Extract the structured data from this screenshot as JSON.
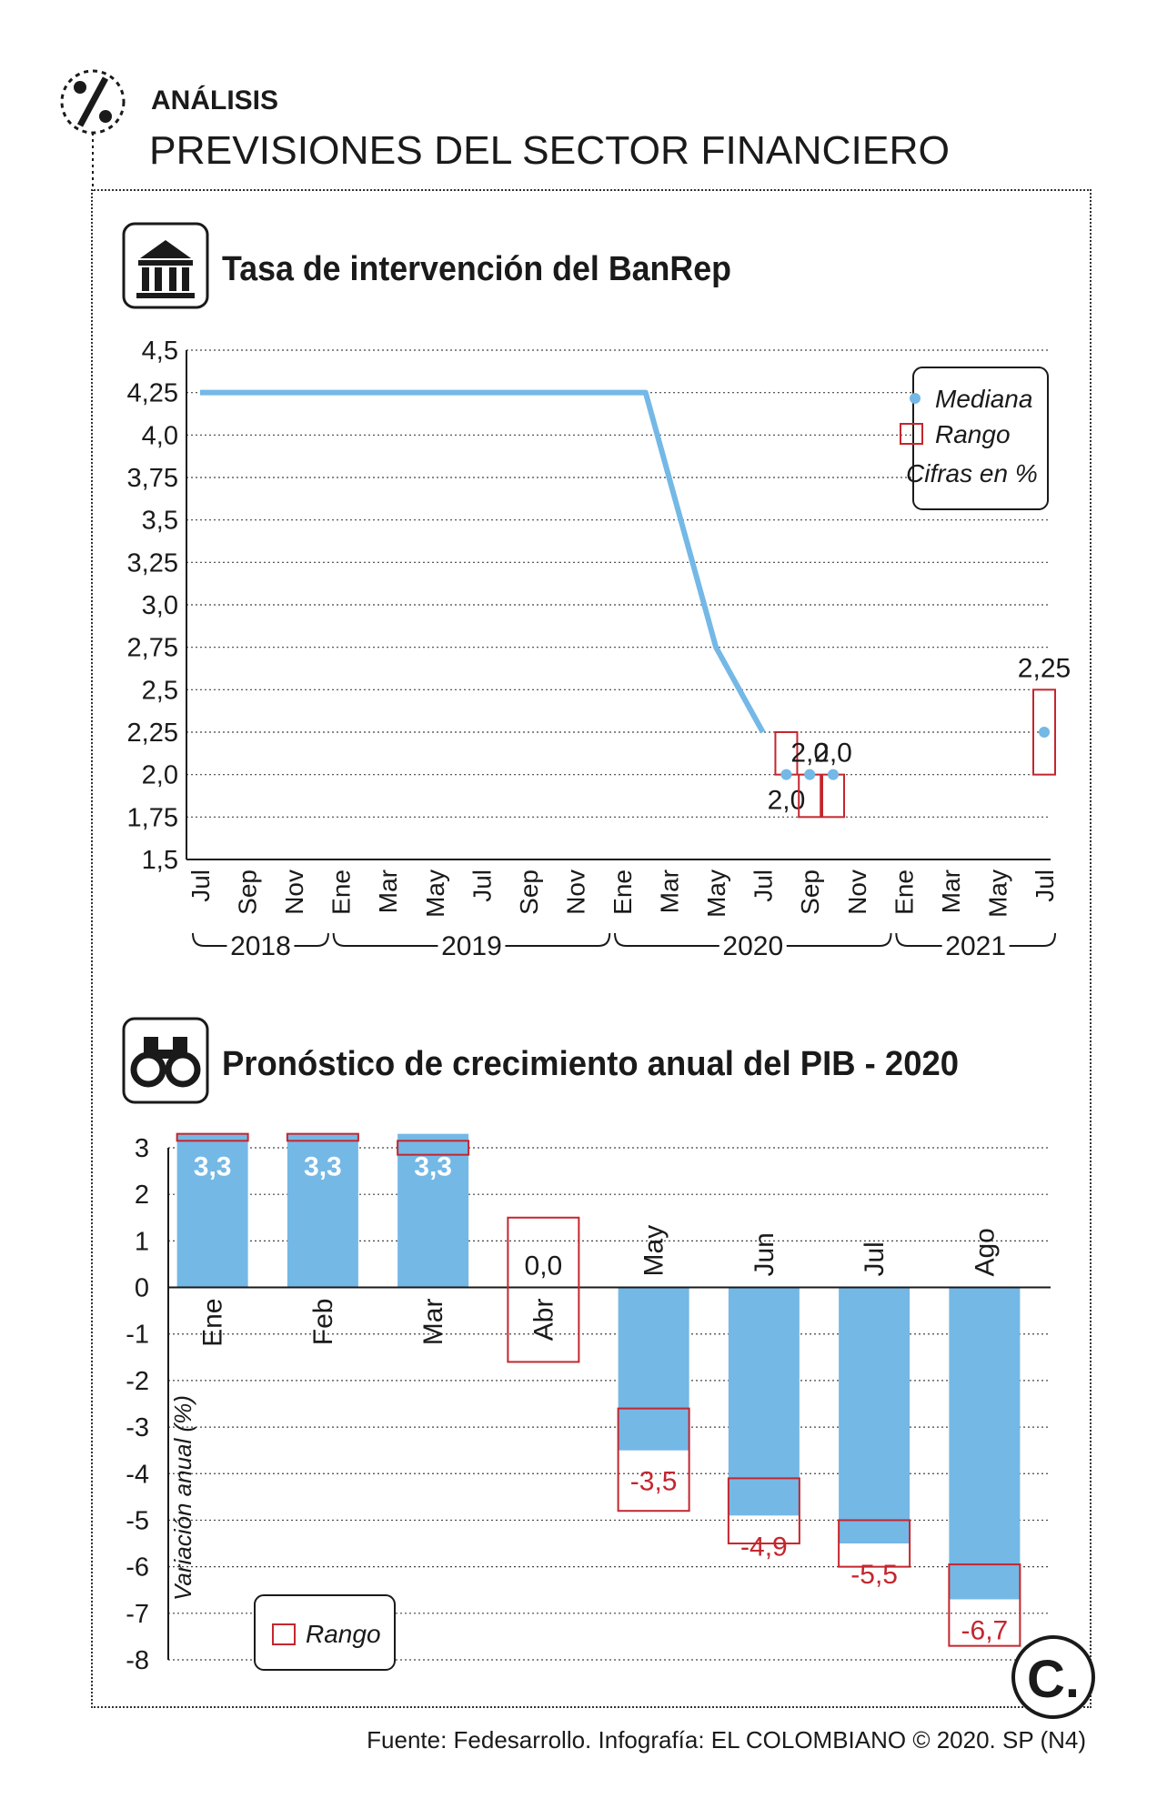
{
  "header": {
    "kicker": "ANÁLISIS",
    "title": "PREVISIONES DEL SECTOR FINANCIERO",
    "percent_icon": "percent-icon"
  },
  "colors": {
    "series_blue": "#74b8e6",
    "range_red": "#c4262e",
    "text": "#1a1a1a",
    "grid": "#444444"
  },
  "chart1": {
    "title": "Tasa de intervención del BanRep",
    "icon": "bank-building-icon",
    "legend": {
      "median": "Mediana",
      "range": "Rango",
      "note": "Cifras en %"
    }
  },
  "chart2": {
    "title": "Pronóstico de crecimiento anual del PIB - 2020",
    "icon": "binoculars-icon",
    "ylabel": "Variación anual (%)",
    "legend": {
      "range": "Rango"
    }
  },
  "footer": {
    "source": "Fuente: Fedesarrollo. Infografía: EL COLOMBIANO © 2020. SP (N4)",
    "logo_letter": "C."
  },
  "chart_data": [
    {
      "type": "line",
      "title": "Tasa de intervención del BanRep",
      "ylim": [
        1.5,
        4.5
      ],
      "yticks": [
        4.5,
        4.25,
        4.0,
        3.75,
        3.5,
        3.25,
        3.0,
        2.75,
        2.5,
        2.25,
        2.0,
        1.75,
        1.5
      ],
      "ytick_labels": [
        "4,5",
        "4,25",
        "4,0",
        "3,75",
        "3,5",
        "3,25",
        "3,0",
        "2,75",
        "2,5",
        "2,25",
        "2,0",
        "1,75",
        "1,5"
      ],
      "xticks": [
        {
          "label": "Jul",
          "date": "2018-07"
        },
        {
          "label": "Sep",
          "date": "2018-09"
        },
        {
          "label": "Nov",
          "date": "2018-11"
        },
        {
          "label": "Ene",
          "date": "2019-01"
        },
        {
          "label": "Mar",
          "date": "2019-03"
        },
        {
          "label": "May",
          "date": "2019-05"
        },
        {
          "label": "Jul",
          "date": "2019-07"
        },
        {
          "label": "Sep",
          "date": "2019-09"
        },
        {
          "label": "Nov",
          "date": "2019-11"
        },
        {
          "label": "Ene",
          "date": "2020-01"
        },
        {
          "label": "Mar",
          "date": "2020-03"
        },
        {
          "label": "May",
          "date": "2020-05"
        },
        {
          "label": "Jul",
          "date": "2020-07"
        },
        {
          "label": "Sep",
          "date": "2020-09"
        },
        {
          "label": "Nov",
          "date": "2020-11"
        },
        {
          "label": "Ene",
          "date": "2021-01"
        },
        {
          "label": "Mar",
          "date": "2021-03"
        },
        {
          "label": "May",
          "date": "2021-05"
        },
        {
          "label": "Jul",
          "date": "2021-07"
        }
      ],
      "years": [
        {
          "label": "2018",
          "from": "2018-07",
          "to": "2018-12"
        },
        {
          "label": "2019",
          "from": "2019-01",
          "to": "2019-12"
        },
        {
          "label": "2020",
          "from": "2020-01",
          "to": "2020-12"
        },
        {
          "label": "2021",
          "from": "2021-01",
          "to": "2021-07"
        }
      ],
      "line": [
        {
          "date": "2018-07",
          "value": 4.25
        },
        {
          "date": "2020-02",
          "value": 4.25
        },
        {
          "date": "2020-05",
          "value": 2.75
        },
        {
          "date": "2020-07",
          "value": 2.25
        }
      ],
      "forecasts": [
        {
          "date": "2020-08",
          "median": 2.0,
          "range": [
            2.0,
            2.25
          ],
          "label": "2,0",
          "label_pos": "below"
        },
        {
          "date": "2020-09",
          "median": 2.0,
          "range": [
            1.75,
            2.0
          ],
          "label": "2,0",
          "label_pos": "above"
        },
        {
          "date": "2020-10",
          "median": 2.0,
          "range": [
            1.75,
            2.0
          ],
          "label": "2,0",
          "label_pos": "above"
        },
        {
          "date": "2021-07",
          "median": 2.25,
          "range": [
            2.0,
            2.5
          ],
          "label": "2,25",
          "label_pos": "above"
        }
      ],
      "legend": [
        "Mediana",
        "Rango"
      ],
      "note": "Cifras en %",
      "grid": true,
      "legend_position": "top-right"
    },
    {
      "type": "bar",
      "title": "Pronóstico de crecimiento anual del PIB - 2020",
      "ylabel": "Variación anual (%)",
      "ylim": [
        -8,
        3
      ],
      "yticks": [
        3,
        2,
        1,
        0,
        -1,
        -2,
        -3,
        -4,
        -5,
        -6,
        -7,
        -8
      ],
      "categories": [
        "Ene",
        "Feb",
        "Mar",
        "Abr",
        "May",
        "Jun",
        "Jul",
        "Ago"
      ],
      "values": [
        3.3,
        3.3,
        3.3,
        0.0,
        -3.5,
        -4.9,
        -5.5,
        -6.7
      ],
      "value_labels": [
        "3,3",
        "3,3",
        "3,3",
        "0,0",
        "-3,5",
        "-4,9",
        "-5,5",
        "-6,7"
      ],
      "ranges": [
        [
          3.15,
          3.3
        ],
        [
          3.15,
          3.3
        ],
        [
          2.85,
          3.15
        ],
        [
          -1.6,
          1.5
        ],
        [
          -4.8,
          -2.6
        ],
        [
          -5.5,
          -4.1
        ],
        [
          -6.0,
          -5.0
        ],
        [
          -7.7,
          -5.95
        ]
      ],
      "legend": [
        "Rango"
      ],
      "grid": true,
      "legend_position": "bottom-left"
    }
  ]
}
